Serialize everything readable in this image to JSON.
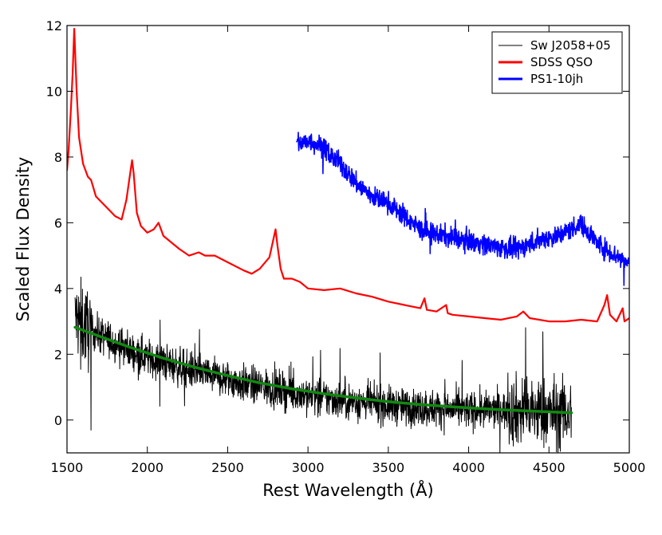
{
  "chart_data": {
    "type": "line",
    "title": "",
    "xlabel": "Rest Wavelength (Å)",
    "ylabel": "Scaled Flux Density",
    "xlim": [
      1500,
      5000
    ],
    "ylim": [
      -1,
      12
    ],
    "xticks": [
      1500,
      2000,
      2500,
      3000,
      3500,
      4000,
      4500,
      5000
    ],
    "yticks": [
      0,
      2,
      4,
      6,
      8,
      10,
      12
    ],
    "grid": false,
    "legend_position": "top-right",
    "series": [
      {
        "name": "Sw J2058+05",
        "color": "#000000",
        "style": "noisy",
        "noise": 0.55,
        "x": [
          1550,
          1600,
          1700,
          1800,
          1900,
          2000,
          2200,
          2400,
          2600,
          2800,
          3000,
          3200,
          3400,
          3600,
          3800,
          4000,
          4200,
          4400,
          4640
        ],
        "y": [
          3.1,
          2.9,
          2.6,
          2.35,
          2.1,
          1.9,
          1.6,
          1.35,
          1.1,
          0.95,
          0.75,
          0.6,
          0.5,
          0.4,
          0.35,
          0.3,
          0.3,
          0.25,
          0.2
        ]
      },
      {
        "name": "SDSS QSO",
        "color": "#ff0000",
        "style": "smooth",
        "x": [
          1500,
          1510,
          1525,
          1535,
          1545,
          1552,
          1560,
          1575,
          1600,
          1630,
          1650,
          1680,
          1720,
          1760,
          1800,
          1840,
          1870,
          1890,
          1905,
          1915,
          1935,
          1960,
          2000,
          2040,
          2070,
          2100,
          2150,
          2200,
          2260,
          2320,
          2360,
          2420,
          2500,
          2600,
          2650,
          2700,
          2760,
          2785,
          2798,
          2810,
          2830,
          2850,
          2900,
          2950,
          3000,
          3100,
          3200,
          3300,
          3400,
          3500,
          3600,
          3700,
          3725,
          3740,
          3800,
          3860,
          3870,
          3900,
          4000,
          4100,
          4200,
          4300,
          4340,
          4380,
          4500,
          4600,
          4700,
          4800,
          4845,
          4862,
          4880,
          4920,
          4959,
          4970,
          5000
        ],
        "y": [
          7.6,
          8.2,
          9.5,
          10.5,
          11.9,
          11.0,
          10.0,
          8.6,
          7.8,
          7.4,
          7.3,
          6.8,
          6.6,
          6.4,
          6.2,
          6.1,
          6.7,
          7.4,
          7.9,
          7.5,
          6.3,
          5.9,
          5.7,
          5.8,
          6.0,
          5.6,
          5.4,
          5.2,
          5.0,
          5.1,
          5.0,
          5.0,
          4.8,
          4.55,
          4.45,
          4.6,
          4.95,
          5.5,
          5.8,
          5.3,
          4.6,
          4.3,
          4.3,
          4.2,
          4.0,
          3.95,
          4.0,
          3.85,
          3.75,
          3.6,
          3.5,
          3.4,
          3.7,
          3.35,
          3.3,
          3.5,
          3.25,
          3.2,
          3.15,
          3.1,
          3.05,
          3.15,
          3.3,
          3.1,
          3.0,
          3.0,
          3.05,
          3.0,
          3.5,
          3.8,
          3.2,
          3.0,
          3.4,
          3.0,
          3.1
        ]
      },
      {
        "name": "PS1-10jh",
        "color": "#0000ff",
        "style": "noisy",
        "noise": 0.3,
        "x": [
          2930,
          2960,
          3000,
          3050,
          3100,
          3150,
          3200,
          3250,
          3300,
          3350,
          3400,
          3450,
          3500,
          3550,
          3600,
          3650,
          3700,
          3750,
          3800,
          3850,
          3900,
          3950,
          4000,
          4050,
          4100,
          4150,
          4200,
          4250,
          4300,
          4350,
          4400,
          4450,
          4500,
          4550,
          4600,
          4650,
          4700,
          4750,
          4800,
          4850,
          4900,
          4950,
          5000
        ],
        "y": [
          8.5,
          8.4,
          8.5,
          8.4,
          8.3,
          8.0,
          7.8,
          7.5,
          7.2,
          7.0,
          6.8,
          6.7,
          6.6,
          6.4,
          6.2,
          6.0,
          5.8,
          5.7,
          5.65,
          5.6,
          5.55,
          5.5,
          5.45,
          5.4,
          5.35,
          5.3,
          5.25,
          5.2,
          5.2,
          5.3,
          5.4,
          5.5,
          5.55,
          5.6,
          5.7,
          5.85,
          5.95,
          5.7,
          5.4,
          5.2,
          5.05,
          4.9,
          4.8
        ]
      },
      {
        "name": "model fit",
        "color": "#118811",
        "style": "smooth",
        "in_legend": false,
        "x": [
          1550,
          1700,
          1900,
          2100,
          2300,
          2500,
          2700,
          2900,
          3100,
          3300,
          3500,
          3700,
          3900,
          4100,
          4300,
          4500,
          4640
        ],
        "y": [
          2.82,
          2.55,
          2.2,
          1.88,
          1.6,
          1.35,
          1.13,
          0.95,
          0.8,
          0.67,
          0.56,
          0.47,
          0.4,
          0.34,
          0.29,
          0.25,
          0.22
        ]
      }
    ]
  }
}
